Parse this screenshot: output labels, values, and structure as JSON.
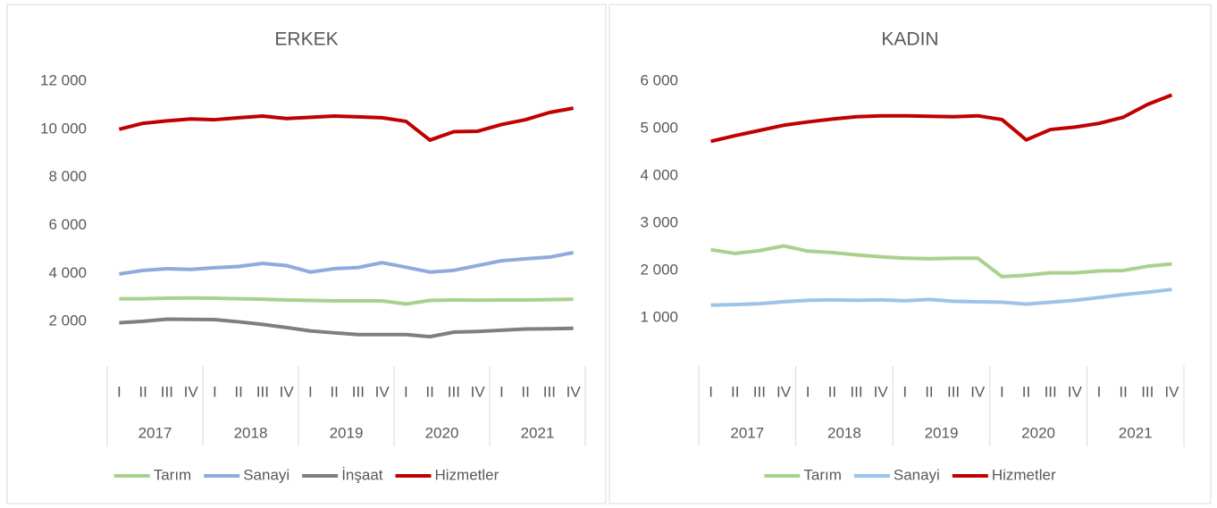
{
  "chart_data": [
    {
      "type": "line",
      "title": "ERKEK",
      "categories": [
        "I",
        "II",
        "III",
        "IV",
        "I",
        "II",
        "III",
        "IV",
        "I",
        "II",
        "III",
        "IV",
        "I",
        "II",
        "III",
        "IV",
        "I",
        "II",
        "III",
        "IV"
      ],
      "groups": [
        "2017",
        "2018",
        "2019",
        "2020",
        "2021"
      ],
      "series": [
        {
          "name": "Tarım",
          "color": "#a9d18e",
          "values": [
            2950,
            2950,
            2970,
            2980,
            2970,
            2950,
            2930,
            2900,
            2880,
            2860,
            2860,
            2860,
            2730,
            2880,
            2900,
            2890,
            2900,
            2900,
            2910,
            2930
          ]
        },
        {
          "name": "Sanayi",
          "color": "#8faadc",
          "values": [
            3980,
            4130,
            4200,
            4170,
            4240,
            4290,
            4420,
            4330,
            4060,
            4200,
            4250,
            4450,
            4260,
            4060,
            4130,
            4330,
            4530,
            4610,
            4680,
            4870
          ]
        },
        {
          "name": "İnşaat",
          "color": "#7f7f7f",
          "values": [
            1950,
            2010,
            2100,
            2090,
            2080,
            1990,
            1880,
            1750,
            1610,
            1530,
            1460,
            1460,
            1460,
            1370,
            1560,
            1590,
            1640,
            1690,
            1700,
            1720
          ]
        },
        {
          "name": "Hizmetler",
          "color": "#c00000",
          "values": [
            10000,
            10250,
            10350,
            10430,
            10400,
            10480,
            10550,
            10450,
            10500,
            10550,
            10520,
            10480,
            10330,
            9550,
            9900,
            9920,
            10200,
            10400,
            10700,
            10880
          ]
        }
      ],
      "ylim": [
        0,
        12000
      ],
      "yticks": [
        {
          "value": 2000,
          "label": "2 000"
        },
        {
          "value": 4000,
          "label": "4 000"
        },
        {
          "value": 6000,
          "label": "6 000"
        },
        {
          "value": 8000,
          "label": "8 000"
        },
        {
          "value": 10000,
          "label": "10 000"
        },
        {
          "value": 12000,
          "label": "12 000"
        }
      ],
      "grid": false,
      "legend": "bottom"
    },
    {
      "type": "line",
      "title": "KADIN",
      "categories": [
        "I",
        "II",
        "III",
        "IV",
        "I",
        "II",
        "III",
        "IV",
        "I",
        "II",
        "III",
        "IV",
        "I",
        "II",
        "III",
        "IV",
        "I",
        "II",
        "III",
        "IV"
      ],
      "groups": [
        "2017",
        "2018",
        "2019",
        "2020",
        "2021"
      ],
      "series": [
        {
          "name": "Tarım",
          "color": "#a9d18e",
          "values": [
            2440,
            2360,
            2420,
            2520,
            2410,
            2380,
            2330,
            2290,
            2260,
            2250,
            2260,
            2260,
            1870,
            1900,
            1950,
            1950,
            1990,
            2000,
            2090,
            2140
          ]
        },
        {
          "name": "Sanayi",
          "color": "#9dc3e6",
          "values": [
            1270,
            1280,
            1300,
            1340,
            1370,
            1380,
            1370,
            1380,
            1360,
            1390,
            1350,
            1340,
            1330,
            1290,
            1330,
            1370,
            1430,
            1490,
            1540,
            1600
          ]
        },
        {
          "name": "Hizmetler",
          "color": "#c00000",
          "values": [
            4730,
            4850,
            4960,
            5070,
            5140,
            5200,
            5250,
            5270,
            5270,
            5260,
            5250,
            5270,
            5190,
            4760,
            4980,
            5030,
            5110,
            5240,
            5510,
            5710
          ]
        }
      ],
      "ylim": [
        0,
        6000
      ],
      "yticks": [
        {
          "value": 1000,
          "label": "1 000"
        },
        {
          "value": 2000,
          "label": "2 000"
        },
        {
          "value": 3000,
          "label": "3 000"
        },
        {
          "value": 4000,
          "label": "4 000"
        },
        {
          "value": 5000,
          "label": "5 000"
        },
        {
          "value": 6000,
          "label": "6 000"
        }
      ],
      "grid": false,
      "legend": "bottom"
    }
  ]
}
